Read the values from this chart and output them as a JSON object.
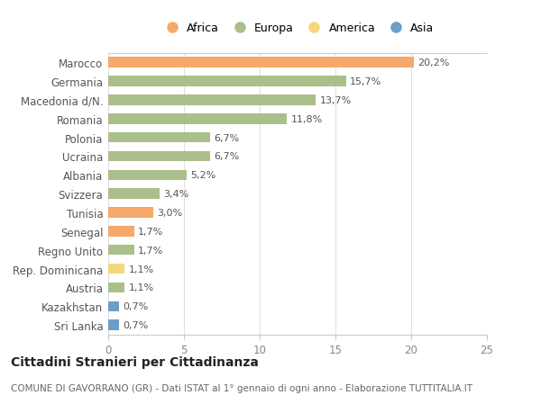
{
  "categories": [
    "Marocco",
    "Germania",
    "Macedonia d/N.",
    "Romania",
    "Polonia",
    "Ucraina",
    "Albania",
    "Svizzera",
    "Tunisia",
    "Senegal",
    "Regno Unito",
    "Rep. Dominicana",
    "Austria",
    "Kazakhstan",
    "Sri Lanka"
  ],
  "values": [
    20.2,
    15.7,
    13.7,
    11.8,
    6.7,
    6.7,
    5.2,
    3.4,
    3.0,
    1.7,
    1.7,
    1.1,
    1.1,
    0.7,
    0.7
  ],
  "labels": [
    "20,2%",
    "15,7%",
    "13,7%",
    "11,8%",
    "6,7%",
    "6,7%",
    "5,2%",
    "3,4%",
    "3,0%",
    "1,7%",
    "1,7%",
    "1,1%",
    "1,1%",
    "0,7%",
    "0,7%"
  ],
  "continents": [
    "Africa",
    "Europa",
    "Europa",
    "Europa",
    "Europa",
    "Europa",
    "Europa",
    "Europa",
    "Africa",
    "Africa",
    "Europa",
    "America",
    "Europa",
    "Asia",
    "Asia"
  ],
  "colors": {
    "Africa": "#F5A96A",
    "Europa": "#AABF8A",
    "America": "#F5D87A",
    "Asia": "#6B9EC8"
  },
  "xlim": [
    0,
    25
  ],
  "xticks": [
    0,
    5,
    10,
    15,
    20,
    25
  ],
  "legend_order": [
    "Africa",
    "Europa",
    "America",
    "Asia"
  ],
  "title": "Cittadini Stranieri per Cittadinanza",
  "subtitle": "COMUNE DI GAVORRANO (GR) - Dati ISTAT al 1° gennaio di ogni anno - Elaborazione TUTTITALIA.IT",
  "background_color": "#ffffff",
  "grid_color": "#e0e0e0",
  "bar_height": 0.55,
  "label_fontsize": 8.0,
  "ytick_fontsize": 8.5,
  "xtick_fontsize": 8.5,
  "legend_fontsize": 9.0,
  "title_fontsize": 10.0,
  "subtitle_fontsize": 7.5
}
